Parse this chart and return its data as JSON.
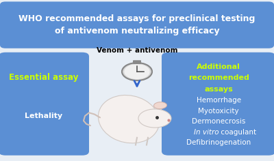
{
  "bg_color": "#e8eef5",
  "title_text": "WHO recommended assays for preclinical testing\nof antivenom neutralizing efficacy",
  "title_box_color": "#5b8fd4",
  "title_text_color": "white",
  "left_box_color": "#5b8fd4",
  "right_box_color": "#5b8fd4",
  "left_title": "Essential assay",
  "left_title_color": "#ccff00",
  "left_items": [
    "Lethality"
  ],
  "left_items_color": "white",
  "right_title_line1": "Additional",
  "right_title_line2": "recommended",
  "right_title_line3": "assays",
  "right_title_color": "#ccff00",
  "right_items": [
    "Hemorrhage",
    "Myotoxicity",
    "Dermonecrosis",
    "In vitro coagulant",
    "Defibrinogenation"
  ],
  "right_items_italic": [
    false,
    false,
    false,
    true,
    false
  ],
  "right_items_color": "white",
  "center_label": "Venom + antivenom",
  "center_label_color": "black",
  "arrow_color": "#3366cc",
  "figsize": [
    4.0,
    2.36
  ],
  "dpi": 100
}
